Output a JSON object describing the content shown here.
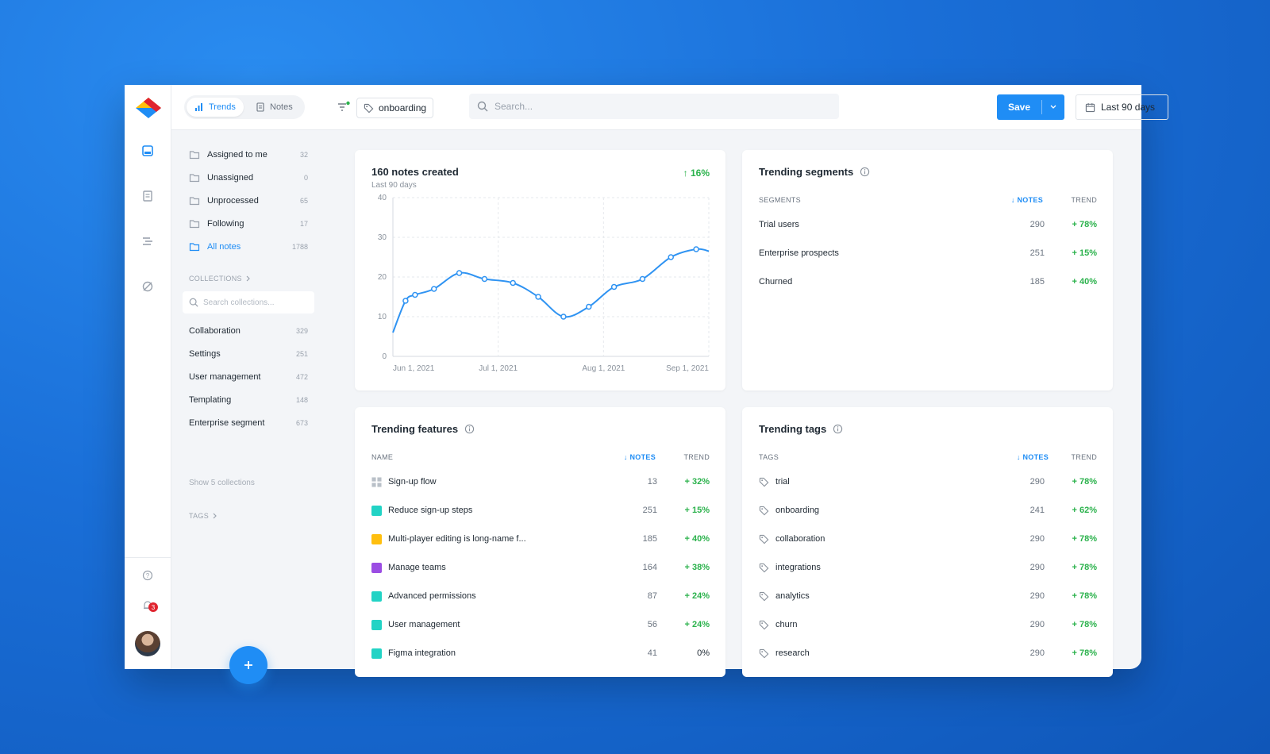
{
  "header": {
    "tabs": [
      {
        "label": "Trends"
      },
      {
        "label": "Notes"
      }
    ],
    "filter_tag": "onboarding",
    "search_placeholder": "Search...",
    "save_label": "Save",
    "date_range": "Last 90 days"
  },
  "sidebar": {
    "views": [
      {
        "label": "Assigned to me",
        "count": "32"
      },
      {
        "label": "Unassigned",
        "count": "0"
      },
      {
        "label": "Unprocessed",
        "count": "65"
      },
      {
        "label": "Following",
        "count": "17"
      },
      {
        "label": "All notes",
        "count": "1788"
      }
    ],
    "collections_label": "COLLECTIONS",
    "collections_search_placeholder": "Search collections...",
    "collections": [
      {
        "label": "Collaboration",
        "count": "329"
      },
      {
        "label": "Settings",
        "count": "251"
      },
      {
        "label": "User management",
        "count": "472"
      },
      {
        "label": "Templating",
        "count": "148"
      },
      {
        "label": "Enterprise segment",
        "count": "673"
      }
    ],
    "show_more": "Show 5 collections",
    "tags_label": "TAGS",
    "notification_count": "3"
  },
  "notes_card": {
    "title": "160 notes created",
    "subtitle": "Last 90 days",
    "trend": "↑ 16%"
  },
  "chart_data": {
    "type": "line",
    "title": "160 notes created",
    "subtitle": "Last 90 days",
    "x_ticks": [
      "Jun 1, 2021",
      "Jul 1, 2021",
      "Aug 1, 2021",
      "Sep 1, 2021"
    ],
    "y_ticks": [
      "0",
      "10",
      "20",
      "30",
      "40"
    ],
    "ylim": [
      0,
      40
    ],
    "xlim": [
      0,
      100
    ],
    "grid": true,
    "series": [
      {
        "values": [
          [
            0,
            6
          ],
          [
            4,
            14
          ],
          [
            7,
            15.5
          ],
          [
            13,
            17
          ],
          [
            21,
            21
          ],
          [
            29,
            19.5
          ],
          [
            38,
            18.5
          ],
          [
            46,
            15
          ],
          [
            54,
            10
          ],
          [
            62,
            12.5
          ],
          [
            70,
            17.5
          ],
          [
            79,
            19.5
          ],
          [
            88,
            25
          ],
          [
            96,
            27
          ],
          [
            100,
            26.5
          ]
        ]
      }
    ],
    "color": "#2f93f2"
  },
  "segments": {
    "title": "Trending segments",
    "col_name": "SEGMENTS",
    "col_notes": "↓ NOTES",
    "col_trend": "TREND",
    "rows": [
      {
        "name": "Trial users",
        "notes": "290",
        "trend": "+ 78%"
      },
      {
        "name": "Enterprise prospects",
        "notes": "251",
        "trend": "+ 15%"
      },
      {
        "name": "Churned",
        "notes": "185",
        "trend": "+ 40%"
      }
    ]
  },
  "features": {
    "title": "Trending features",
    "col_name": "NAME",
    "col_notes": "↓ NOTES",
    "col_trend": "TREND",
    "rows": [
      {
        "name": "Sign-up flow",
        "notes": "13",
        "trend": "+ 32%",
        "color": "grid"
      },
      {
        "name": "Reduce sign-up steps",
        "notes": "251",
        "trend": "+ 15%",
        "color": "#22d3c5"
      },
      {
        "name": "Multi-player editing is long-name f...",
        "notes": "185",
        "trend": "+ 40%",
        "color": "#ffbf0f"
      },
      {
        "name": "Manage teams",
        "notes": "164",
        "trend": "+ 38%",
        "color": "#9b4de3"
      },
      {
        "name": "Advanced permissions",
        "notes": "87",
        "trend": "+ 24%",
        "color": "#22d3c5"
      },
      {
        "name": "User management",
        "notes": "56",
        "trend": "+ 24%",
        "color": "#22d3c5"
      },
      {
        "name": "Figma integration",
        "notes": "41",
        "trend": "0%",
        "color": "#22d3c5"
      }
    ]
  },
  "tags": {
    "title": "Trending tags",
    "col_name": "TAGS",
    "col_notes": "↓ NOTES",
    "col_trend": "TREND",
    "rows": [
      {
        "name": "trial",
        "notes": "290",
        "trend": "+ 78%"
      },
      {
        "name": "onboarding",
        "notes": "241",
        "trend": "+ 62%"
      },
      {
        "name": "collaboration",
        "notes": "290",
        "trend": "+ 78%"
      },
      {
        "name": "integrations",
        "notes": "290",
        "trend": "+ 78%"
      },
      {
        "name": "analytics",
        "notes": "290",
        "trend": "+ 78%"
      },
      {
        "name": "churn",
        "notes": "290",
        "trend": "+ 78%"
      },
      {
        "name": "research",
        "notes": "290",
        "trend": "+ 78%"
      }
    ]
  }
}
